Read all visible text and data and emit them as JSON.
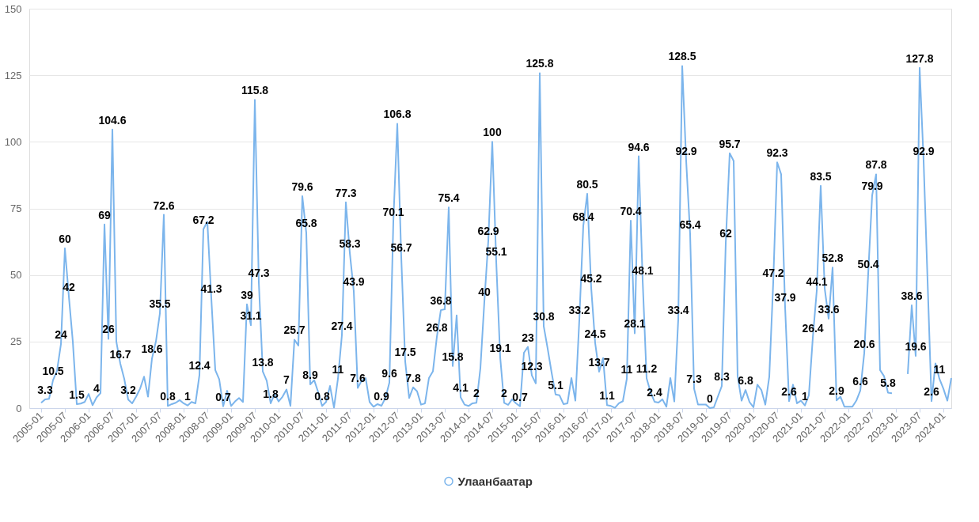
{
  "chart_data": {
    "type": "line",
    "categories": [
      "2005-01",
      null,
      null,
      null,
      null,
      null,
      "2005-07",
      null,
      null,
      null,
      null,
      null,
      "2006-01",
      null,
      null,
      null,
      null,
      null,
      "2006-07",
      null,
      null,
      null,
      null,
      null,
      "2007-01",
      null,
      null,
      null,
      null,
      null,
      "2007-07",
      null,
      null,
      null,
      null,
      null,
      "2008-01",
      null,
      null,
      null,
      null,
      null,
      "2008-07",
      null,
      null,
      null,
      null,
      null,
      "2009-01",
      null,
      null,
      null,
      null,
      null,
      "2009-07",
      null,
      null,
      null,
      null,
      null,
      "2010-01",
      null,
      null,
      null,
      null,
      null,
      "2010-07",
      null,
      null,
      null,
      null,
      null,
      "2011-01",
      null,
      null,
      null,
      null,
      null,
      "2011-07",
      null,
      null,
      null,
      null,
      null,
      "2012-01",
      null,
      null,
      null,
      null,
      null,
      "2012-07",
      null,
      null,
      null,
      null,
      null,
      "2013-01",
      null,
      null,
      null,
      null,
      null,
      "2013-07",
      null,
      null,
      null,
      null,
      null,
      "2014-01",
      null,
      null,
      null,
      null,
      null,
      "2014-07",
      null,
      null,
      null,
      null,
      null,
      "2015-01",
      null,
      null,
      null,
      null,
      null,
      "2015-07",
      null,
      null,
      null,
      null,
      null,
      "2016-01",
      null,
      null,
      null,
      null,
      null,
      "2016-07",
      null,
      null,
      null,
      null,
      null,
      "2017-01",
      null,
      null,
      null,
      null,
      null,
      "2017-07",
      null,
      null,
      null,
      null,
      null,
      "2018-01",
      null,
      null,
      null,
      null,
      null,
      "2018-07",
      null,
      null,
      null,
      null,
      null,
      "2019-01",
      null,
      null,
      null,
      null,
      null,
      "2019-07",
      null,
      null,
      null,
      null,
      null,
      "2020-01",
      null,
      null,
      null,
      null,
      null,
      "2020-07",
      null,
      null,
      null,
      null,
      null,
      "2021-01",
      null,
      null,
      null,
      null,
      null,
      "2021-07",
      null,
      null,
      null,
      null,
      null,
      "2022-01",
      null,
      null,
      null,
      null,
      null,
      "2022-07",
      null,
      null,
      null,
      null,
      null,
      "2023-01",
      null,
      null,
      null,
      null,
      null,
      "2023-07",
      null,
      null,
      null,
      null,
      null,
      "2024-01",
      null,
      null
    ],
    "series": [
      {
        "name": "Улаанбаатар",
        "color": "#7cb5ec",
        "values": [
          2,
          3.3,
          3.5,
          10.5,
          14,
          24,
          60,
          42,
          25,
          1.5,
          1.7,
          2.3,
          5.3,
          1.1,
          4,
          5.6,
          69,
          26,
          104.6,
          25,
          16.7,
          11,
          3.2,
          1.8,
          4.3,
          7.3,
          11.8,
          4.3,
          18.6,
          25,
          35.5,
          72.6,
          0.8,
          1.5,
          2,
          3,
          1.8,
          1,
          2.3,
          1.8,
          12.4,
          67.2,
          70,
          41.3,
          14.3,
          10.8,
          0.7,
          6.5,
          0.8,
          2.5,
          3.8,
          2.3,
          39,
          31.1,
          115.8,
          47.3,
          13.8,
          10.3,
          1.8,
          5.3,
          2.5,
          4.3,
          7,
          0.8,
          25.7,
          23.5,
          79.6,
          65.8,
          8.9,
          10.5,
          6,
          0.8,
          2.3,
          8.3,
          0.2,
          11,
          27.4,
          77.3,
          58.3,
          43.9,
          7.6,
          10.3,
          11.3,
          2.3,
          0.5,
          1.5,
          0.9,
          3.8,
          9.6,
          70.1,
          106.8,
          56.7,
          17.5,
          3.8,
          7.8,
          6.3,
          1.3,
          1.8,
          11.3,
          13.8,
          26.8,
          36.8,
          37.1,
          75.4,
          15.8,
          34.8,
          4.1,
          1.3,
          0.8,
          1.8,
          2,
          15,
          40,
          62.9,
          100,
          55.1,
          19.1,
          2,
          1.2,
          3.3,
          1.8,
          0.7,
          20.8,
          23,
          12.3,
          9.3,
          125.8,
          30.8,
          22.3,
          13.3,
          5.1,
          4.8,
          1.5,
          1.8,
          11.3,
          2.8,
          33.2,
          68.4,
          80.5,
          45.2,
          24.5,
          13.7,
          18.8,
          1.1,
          0.8,
          0.1,
          1.8,
          2.6,
          11,
          70.4,
          28.1,
          94.6,
          48.1,
          11.2,
          6,
          2.4,
          2.1,
          3.3,
          0.5,
          11.3,
          2.5,
          33.4,
          128.5,
          92.9,
          65.4,
          7.3,
          1.3,
          1.3,
          1.3,
          0,
          0.3,
          4.3,
          8.3,
          62,
          95.7,
          92.8,
          12,
          2.8,
          6.8,
          2.3,
          0.3,
          8.8,
          6.8,
          1.3,
          11.8,
          47.2,
          92.3,
          87.8,
          37.9,
          2.6,
          8.8,
          1.8,
          2.8,
          1,
          4.8,
          26.4,
          44.1,
          83.5,
          45,
          33.6,
          52.8,
          2.9,
          4.3,
          0.5,
          0.5,
          0.5,
          2.8,
          6.6,
          20.6,
          50.4,
          79.9,
          87.8,
          14.3,
          12,
          5.8,
          5.6,
          null,
          null,
          null,
          12.8,
          38.6,
          19.6,
          127.8,
          92.9,
          48,
          2.6,
          16.8,
          11,
          7.3,
          2.8,
          11.3
        ],
        "value_labels": [
          null,
          "3.3",
          null,
          "10.5",
          null,
          "24",
          "60",
          "42",
          null,
          "1.5",
          null,
          null,
          null,
          null,
          "4",
          null,
          "69",
          "26",
          "104.6",
          null,
          "16.7",
          null,
          "3.2",
          null,
          null,
          null,
          null,
          null,
          "18.6",
          null,
          "35.5",
          "72.6",
          "0.8",
          null,
          null,
          null,
          null,
          "1",
          null,
          null,
          "12.4",
          "67.2",
          null,
          "41.3",
          null,
          null,
          "0.7",
          null,
          null,
          null,
          null,
          null,
          "39",
          "31.1",
          "115.8",
          "47.3",
          "13.8",
          null,
          "1.8",
          null,
          null,
          null,
          "7",
          null,
          "25.7",
          null,
          "79.6",
          "65.8",
          "8.9",
          null,
          null,
          "0.8",
          null,
          null,
          null,
          "11",
          "27.4",
          "77.3",
          "58.3",
          "43.9",
          "7.6",
          null,
          null,
          null,
          null,
          null,
          "0.9",
          null,
          "9.6",
          "70.1",
          "106.8",
          "56.7",
          "17.5",
          null,
          "7.8",
          null,
          null,
          null,
          null,
          null,
          "26.8",
          "36.8",
          null,
          "75.4",
          "15.8",
          null,
          "4.1",
          null,
          null,
          null,
          "2",
          null,
          "40",
          "62.9",
          "100",
          "55.1",
          "19.1",
          "2",
          null,
          null,
          null,
          "0.7",
          null,
          "23",
          "12.3",
          null,
          "125.8",
          "30.8",
          null,
          null,
          "5.1",
          null,
          null,
          null,
          null,
          null,
          "33.2",
          "68.4",
          "80.5",
          "45.2",
          "24.5",
          "13.7",
          null,
          "1.1",
          null,
          null,
          null,
          null,
          "11",
          "70.4",
          "28.1",
          "94.6",
          "48.1",
          "11.2",
          null,
          "2.4",
          null,
          null,
          null,
          null,
          null,
          "33.4",
          "128.5",
          "92.9",
          "65.4",
          "7.3",
          null,
          null,
          null,
          "0",
          null,
          null,
          "8.3",
          "62",
          "95.7",
          null,
          null,
          null,
          "6.8",
          null,
          null,
          null,
          null,
          null,
          null,
          "47.2",
          "92.3",
          null,
          "37.9",
          "2.6",
          null,
          null,
          null,
          "1",
          null,
          "26.4",
          "44.1",
          "83.5",
          null,
          "33.6",
          "52.8",
          "2.9",
          null,
          null,
          null,
          null,
          null,
          "6.6",
          "20.6",
          "50.4",
          "79.9",
          "87.8",
          null,
          null,
          "5.8",
          null,
          null,
          null,
          null,
          null,
          "38.6",
          "19.6",
          "127.8",
          "92.9",
          null,
          "2.6",
          null,
          "11",
          null,
          null,
          null
        ]
      }
    ],
    "ylim": [
      0,
      150
    ],
    "yticks": [
      0,
      25,
      50,
      75,
      100,
      125,
      150
    ],
    "grid": "y",
    "legend": "bottom",
    "marker": "none",
    "line_style": "solid"
  }
}
